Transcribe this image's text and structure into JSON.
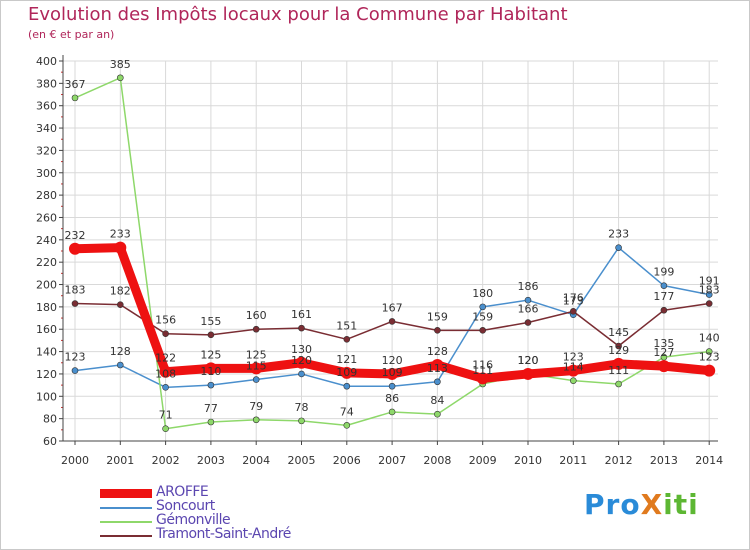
{
  "title": "Evolution des Impôts locaux pour la Commune par Habitant",
  "subtitle": "(en € et par an)",
  "colors": {
    "title": "#b0265a",
    "legend_text": "#5b46b0",
    "axis": "#444444",
    "grid": "#d9d9d9"
  },
  "logo": {
    "text": "ProXiti",
    "part1": "Pro",
    "part2": "X",
    "part3": "iti"
  },
  "chart_data": {
    "type": "line",
    "x": [
      "2000",
      "2001",
      "2002",
      "2003",
      "2004",
      "2005",
      "2006",
      "2007",
      "2008",
      "2009",
      "2010",
      "2011",
      "2012",
      "2013",
      "2014"
    ],
    "ylim": [
      60,
      400
    ],
    "yticks": [
      60,
      80,
      100,
      120,
      140,
      160,
      180,
      200,
      220,
      240,
      260,
      280,
      300,
      320,
      340,
      360,
      380,
      400
    ],
    "grid": true,
    "legend_position": "bottom-left",
    "series": [
      {
        "name": "AROFFE",
        "color": "#ee1111",
        "emphasis": true,
        "values": [
          232,
          233,
          122,
          125,
          125,
          130,
          121,
          120,
          128,
          116,
          120,
          123,
          129,
          127,
          123
        ],
        "labels": [
          "232",
          "233",
          "122",
          "125",
          "125",
          "130",
          "121",
          "120",
          "128",
          "116",
          "120",
          "123",
          "129",
          "127",
          "123"
        ]
      },
      {
        "name": "Soncourt",
        "color": "#4a8fcd",
        "values": [
          123,
          128,
          108,
          110,
          115,
          120,
          109,
          109,
          113,
          180,
          186,
          173,
          233,
          199,
          191
        ],
        "labels": [
          "123",
          "128",
          "108",
          "110",
          "115",
          "120",
          "109",
          "109",
          "113",
          "180",
          "186",
          "173",
          "233",
          "199",
          "191"
        ]
      },
      {
        "name": "Gémonville",
        "color": "#8ed86a",
        "values": [
          367,
          385,
          71,
          77,
          79,
          78,
          74,
          86,
          84,
          111,
          120,
          114,
          111,
          135,
          140
        ],
        "labels": [
          "367",
          "385",
          "71",
          "77",
          "79",
          "78",
          "74",
          "86",
          "84",
          "111",
          "120",
          "114",
          "111",
          "135",
          "140"
        ]
      },
      {
        "name": "Tramont-Saint-André",
        "color": "#7a2d33",
        "values": [
          183,
          182,
          156,
          155,
          160,
          161,
          151,
          167,
          159,
          159,
          166,
          176,
          145,
          177,
          183
        ],
        "labels": [
          "183",
          "182",
          "156",
          "155",
          "160",
          "161",
          "151",
          "167",
          "159",
          "159",
          "166",
          "176",
          "145",
          "177",
          "183"
        ]
      }
    ]
  }
}
